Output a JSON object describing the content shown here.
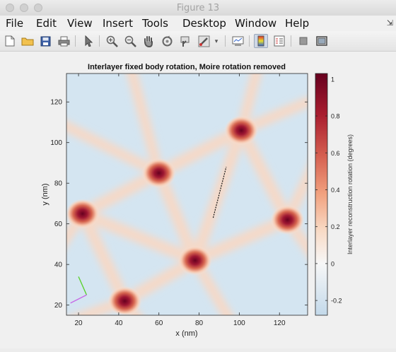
{
  "window": {
    "title": "Figure 13"
  },
  "menus": [
    "File",
    "Edit",
    "View",
    "Insert",
    "Tools",
    "Desktop",
    "Window",
    "Help"
  ],
  "toolbar_icons": [
    "new-figure-icon",
    "open-file-icon",
    "save-icon",
    "print-icon",
    "pointer-icon",
    "zoom-in-icon",
    "zoom-out-icon",
    "pan-icon",
    "rotate-icon",
    "data-cursor-icon",
    "brush-icon",
    "colorbar-icon",
    "legend-icon",
    "hide-plot-tools-icon",
    "show-plot-tools-icon"
  ],
  "colors": {
    "positive": "#67001f",
    "negative": "#c7dcee",
    "zero": "#f7f7f7"
  },
  "chart_data": {
    "type": "heatmap",
    "title": "Interlayer fixed body rotation, Moire rotation removed",
    "xlabel": "x (nm)",
    "ylabel": "y (nm)",
    "xlim": [
      14,
      134
    ],
    "ylim": [
      15,
      134
    ],
    "xticks": [
      20,
      40,
      60,
      80,
      100,
      120
    ],
    "yticks": [
      20,
      40,
      60,
      80,
      100,
      120
    ],
    "colorbar": {
      "label": "Interlayer reconstruction rotation (degrees)",
      "range": [
        -0.28,
        1.03
      ],
      "ticks": [
        -0.2,
        0,
        0.2,
        0.4,
        0.6,
        0.8,
        1
      ]
    },
    "peaks": [
      {
        "x": 101,
        "y": 106,
        "value": 1.0
      },
      {
        "x": 60,
        "y": 85,
        "value": 1.0
      },
      {
        "x": 22,
        "y": 65,
        "value": 1.0
      },
      {
        "x": 78,
        "y": 42,
        "value": 1.0
      },
      {
        "x": 124,
        "y": 62,
        "value": 1.0
      },
      {
        "x": 43,
        "y": 22,
        "value": 1.0
      }
    ],
    "cut_line": {
      "x": [
        87,
        93.5
      ],
      "y": [
        63,
        88
      ]
    },
    "axis_triad": [
      {
        "color": "#5cd12f",
        "x": [
          24,
          20
        ],
        "y": [
          25,
          34
        ]
      },
      {
        "color": "#c76ae6",
        "x": [
          24,
          16
        ],
        "y": [
          25,
          21
        ]
      }
    ]
  }
}
